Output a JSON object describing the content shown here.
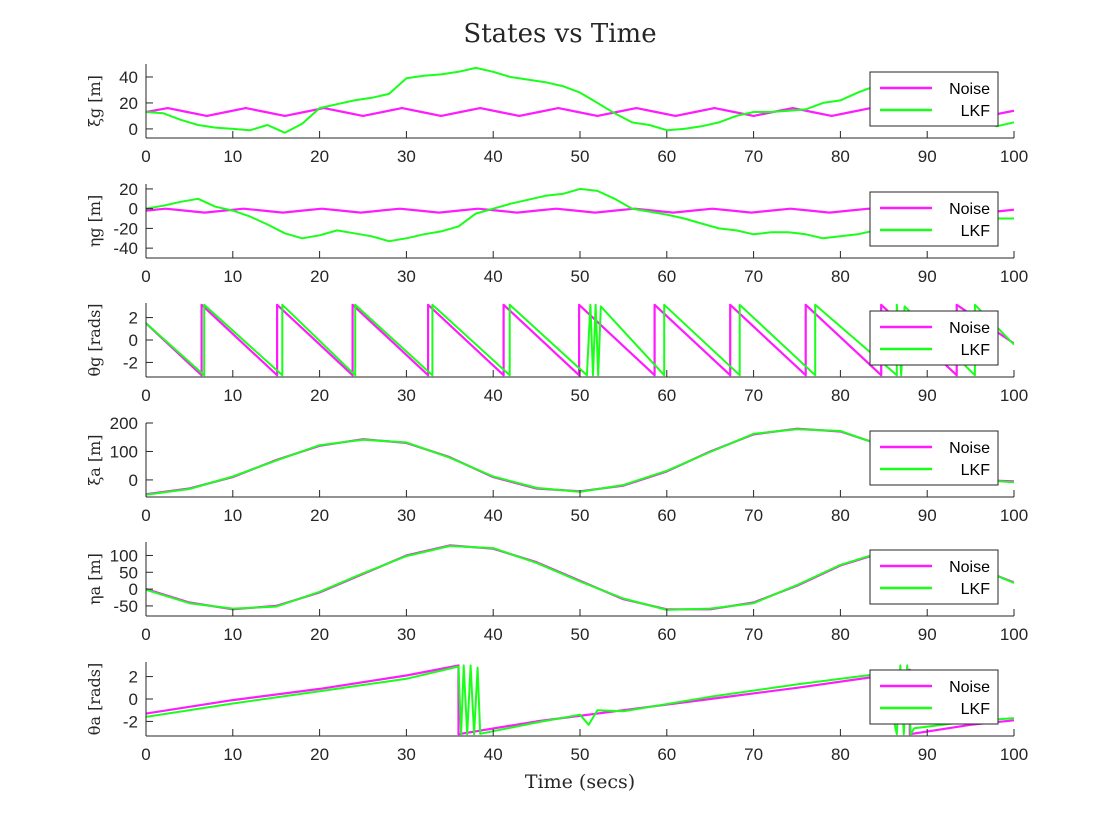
{
  "figure": {
    "title": "States vs Time"
  },
  "chart_data": {
    "type": "line",
    "title": "States vs Time",
    "xlabel": "Time (secs)",
    "xlim": [
      0,
      100
    ],
    "xticks": [
      0,
      10,
      20,
      30,
      40,
      50,
      60,
      70,
      80,
      90,
      100
    ],
    "grid": false,
    "legend_placement": "top-right",
    "colors": {
      "Noise": "#ff1aff",
      "LKF": "#1aff1a"
    },
    "subplots": [
      {
        "ylabel": "ξg [m]",
        "ylim": [
          -7,
          50
        ],
        "yticks": [
          0,
          20,
          40
        ],
        "series": [
          {
            "name": "Noise",
            "x": [
              0,
              2.5,
              4.75,
              7,
              9.25,
              11.5,
              13.75,
              16,
              18.25,
              20.5,
              22.75,
              25,
              27.25,
              29.5,
              31.75,
              34,
              36.25,
              38.5,
              40.75,
              43,
              45.25,
              47.5,
              49.75,
              52,
              54.25,
              56.5,
              58.75,
              61,
              63.25,
              65.5,
              67.75,
              70,
              72.25,
              74.5,
              76.75,
              79,
              81.25,
              83.5,
              85.75,
              88,
              90.25,
              92.5,
              94.75,
              97,
              99.25,
              100
            ],
            "y": [
              13,
              16,
              13,
              10,
              13,
              16,
              13,
              10,
              13,
              16,
              13,
              10,
              13,
              16,
              13,
              10,
              13,
              16,
              13,
              10,
              13,
              16,
              13,
              10,
              13,
              16,
              13,
              10,
              13,
              16,
              13,
              10,
              13,
              16,
              13,
              10,
              13,
              16,
              13,
              10,
              13,
              16,
              13,
              10,
              13,
              14
            ]
          },
          {
            "name": "LKF",
            "x": [
              0,
              2,
              4,
              6,
              8,
              10,
              12,
              14,
              16,
              18,
              20,
              22,
              24,
              26,
              28,
              30,
              32,
              34,
              36,
              38,
              40,
              42,
              44,
              46,
              48,
              50,
              52,
              54,
              56,
              58,
              60,
              62,
              64,
              66,
              68,
              70,
              72,
              74,
              76,
              78,
              80,
              82,
              84,
              86,
              88,
              90,
              92,
              94,
              96,
              98,
              100
            ],
            "y": [
              13,
              12,
              7,
              3,
              1,
              0,
              -1,
              3,
              -3,
              4,
              16,
              19,
              22,
              24,
              27,
              39,
              41,
              42,
              44,
              47,
              44,
              40,
              38,
              36,
              33,
              28,
              20,
              12,
              5,
              3,
              -1,
              0,
              2,
              5,
              10,
              13,
              13,
              14,
              15,
              20,
              22,
              28,
              33,
              33,
              30,
              28,
              27,
              20,
              10,
              2,
              5
            ]
          }
        ]
      },
      {
        "ylabel": "ηg [m]",
        "ylim": [
          -50,
          25
        ],
        "yticks": [
          -40,
          -20,
          0,
          20
        ],
        "series": [
          {
            "name": "Noise",
            "x": [
              0,
              2.25,
              4.5,
              6.75,
              9,
              11.25,
              13.5,
              15.75,
              18,
              20.25,
              22.5,
              24.75,
              27,
              29.25,
              31.5,
              33.75,
              36,
              38.25,
              40.5,
              42.75,
              45,
              47.25,
              49.5,
              51.75,
              54,
              56.25,
              58.5,
              60.75,
              63,
              65.25,
              67.5,
              69.75,
              72,
              74.25,
              76.5,
              78.75,
              81,
              83.25,
              85.5,
              87.75,
              90,
              92.25,
              94.5,
              96.75,
              99,
              100
            ],
            "y": [
              -2,
              0,
              -2,
              -4,
              -2,
              0,
              -2,
              -4,
              -2,
              0,
              -2,
              -4,
              -2,
              0,
              -2,
              -4,
              -2,
              0,
              -2,
              -4,
              -2,
              0,
              -2,
              -4,
              -2,
              0,
              -2,
              -4,
              -2,
              0,
              -2,
              -4,
              -2,
              0,
              -2,
              -4,
              -2,
              0,
              -2,
              -4,
              -2,
              0,
              -2,
              -4,
              -2,
              -1
            ]
          },
          {
            "name": "LKF",
            "x": [
              0,
              2,
              4,
              6,
              8,
              10,
              12,
              14,
              16,
              18,
              20,
              22,
              24,
              26,
              28,
              30,
              32,
              34,
              36,
              38,
              40,
              42,
              44,
              46,
              48,
              50,
              52,
              54,
              56,
              58,
              60,
              62,
              64,
              66,
              68,
              70,
              72,
              74,
              76,
              78,
              80,
              82,
              84,
              86,
              88,
              90,
              92,
              94,
              96,
              98,
              100
            ],
            "y": [
              0,
              3,
              7,
              10,
              2,
              -2,
              -8,
              -16,
              -25,
              -30,
              -27,
              -22,
              -25,
              -28,
              -33,
              -30,
              -26,
              -23,
              -18,
              -5,
              0,
              5,
              9,
              13,
              15,
              20,
              18,
              10,
              0,
              -3,
              -6,
              -10,
              -15,
              -20,
              -22,
              -26,
              -24,
              -24,
              -26,
              -30,
              -28,
              -26,
              -22,
              -15,
              -8,
              -2,
              0,
              -5,
              -8,
              -10,
              -10
            ]
          }
        ]
      },
      {
        "ylabel": "θg [rads]",
        "ylim": [
          -3.3,
          3.3
        ],
        "yticks": [
          -2,
          0,
          2
        ],
        "series": [
          {
            "name": "Noise",
            "x": [
              0,
              6.4,
              6.4,
              15.1,
              15.1,
              23.8,
              23.8,
              32.5,
              32.5,
              41.2,
              41.2,
              49.9,
              49.9,
              58.6,
              58.6,
              67.3,
              67.3,
              76.0,
              76.0,
              84.7,
              84.7,
              93.4,
              93.4,
              100
            ],
            "y": [
              1.5,
              -3.14,
              3.14,
              -3.14,
              3.14,
              -3.14,
              3.14,
              -3.14,
              3.14,
              -3.14,
              3.14,
              -3.14,
              3.14,
              -3.14,
              3.14,
              -3.14,
              3.14,
              -3.14,
              3.14,
              -3.14,
              3.14,
              -3.14,
              3.14,
              -0.3
            ]
          },
          {
            "name": "LKF",
            "x": [
              0,
              6.7,
              6.7,
              15.7,
              15.7,
              24.1,
              24.1,
              33.0,
              33.0,
              41.9,
              41.9,
              50.8,
              50.8,
              51.2,
              51.5,
              51.8,
              52.1,
              52.4,
              52.4,
              59.7,
              59.7,
              68.4,
              68.4,
              77.1,
              77.1,
              86.5,
              86.5,
              87.0,
              87.4,
              95.5,
              95.5,
              100
            ],
            "y": [
              1.5,
              -3.14,
              3.14,
              -3.14,
              3.14,
              -3.14,
              3.14,
              -3.14,
              3.14,
              -3.14,
              3.14,
              -3.14,
              -3.14,
              3.14,
              -3.14,
              3.14,
              -3.14,
              3.0,
              3.0,
              -3.14,
              3.14,
              -3.14,
              3.14,
              -3.14,
              3.14,
              -3.14,
              3.14,
              -3.14,
              3.0,
              -3.14,
              3.14,
              -0.4
            ]
          }
        ]
      },
      {
        "ylabel": "ξa [m]",
        "ylim": [
          -60,
          200
        ],
        "yticks": [
          0,
          100,
          200
        ],
        "series": [
          {
            "name": "Noise",
            "x": [
              0,
              5,
              10,
              15,
              20,
              25,
              30,
              35,
              40,
              45,
              50,
              55,
              60,
              65,
              70,
              75,
              80,
              85,
              90,
              95,
              100
            ],
            "y": [
              -50,
              -30,
              10,
              70,
              120,
              143,
              130,
              80,
              10,
              -30,
              -40,
              -20,
              30,
              100,
              160,
              180,
              170,
              120,
              60,
              0,
              -5
            ]
          },
          {
            "name": "LKF",
            "x": [
              0,
              5,
              10,
              15,
              20,
              25,
              30,
              35,
              40,
              45,
              50,
              55,
              60,
              65,
              70,
              75,
              80,
              85,
              90,
              95,
              100
            ],
            "y": [
              -52,
              -32,
              12,
              68,
              122,
              141,
              132,
              78,
              12,
              -28,
              -42,
              -18,
              32,
              98,
              162,
              178,
              172,
              118,
              62,
              2,
              -8
            ]
          }
        ]
      },
      {
        "ylabel": "ηa [m]",
        "ylim": [
          -80,
          140
        ],
        "yticks": [
          -50,
          0,
          50,
          100
        ],
        "series": [
          {
            "name": "Noise",
            "x": [
              0,
              5,
              10,
              15,
              20,
              25,
              30,
              35,
              40,
              45,
              50,
              55,
              60,
              65,
              70,
              75,
              80,
              85,
              90,
              95,
              100
            ],
            "y": [
              0,
              -40,
              -60,
              -50,
              -10,
              45,
              100,
              130,
              120,
              80,
              25,
              -30,
              -60,
              -60,
              -40,
              10,
              70,
              110,
              110,
              70,
              20
            ]
          },
          {
            "name": "LKF",
            "x": [
              0,
              5,
              10,
              15,
              20,
              25,
              30,
              35,
              40,
              45,
              50,
              55,
              60,
              65,
              70,
              75,
              80,
              85,
              90,
              95,
              100
            ],
            "y": [
              -2,
              -42,
              -58,
              -52,
              -8,
              47,
              98,
              128,
              122,
              78,
              23,
              -28,
              -62,
              -58,
              -42,
              12,
              72,
              112,
              108,
              72,
              18
            ]
          }
        ]
      },
      {
        "ylabel": "θa [rads]",
        "ylim": [
          -3.3,
          3.3
        ],
        "yticks": [
          -2,
          0,
          2
        ],
        "series": [
          {
            "name": "Noise",
            "x": [
              0,
              10,
              20,
              30,
              36,
              36,
              45,
              55,
              65,
              75,
              85,
              88,
              88,
              95,
              100
            ],
            "y": [
              -1.3,
              -0.1,
              0.9,
              2.1,
              3.0,
              -3.14,
              -2.0,
              -1.0,
              0.0,
              1.0,
              2.1,
              2.6,
              -3.14,
              -2.3,
              -1.9
            ]
          },
          {
            "name": "LKF",
            "x": [
              0,
              10,
              20,
              30,
              36,
              36.3,
              36.6,
              37,
              37.4,
              37.8,
              38.2,
              38.5,
              45,
              50,
              51,
              52,
              55,
              65,
              75,
              85,
              86.5,
              86.9,
              87.3,
              87.7,
              88.1,
              88.5,
              95,
              100
            ],
            "y": [
              -1.6,
              -0.4,
              0.7,
              1.8,
              2.9,
              -3.14,
              3.0,
              -3.14,
              3.0,
              -3.14,
              2.8,
              -3.1,
              -2.1,
              -1.4,
              -2.3,
              -1.0,
              -1.1,
              0.2,
              1.3,
              2.3,
              -3.14,
              3.0,
              -3.14,
              3.0,
              -3.14,
              -2.6,
              -2.0,
              -1.7
            ]
          }
        ]
      }
    ]
  }
}
